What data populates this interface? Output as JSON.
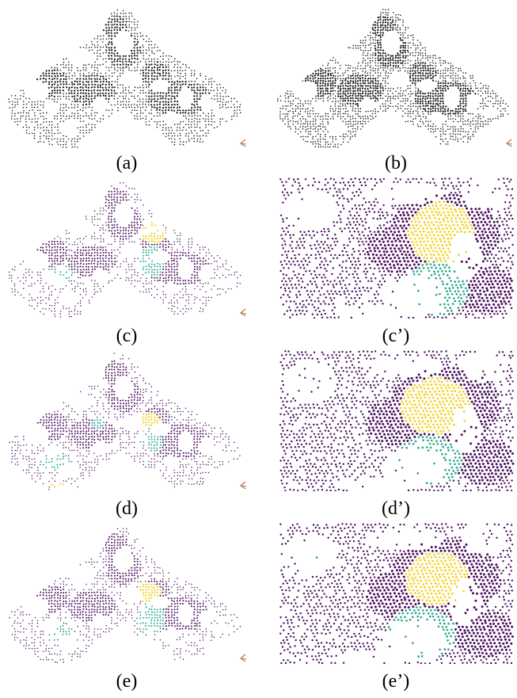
{
  "figure": {
    "captions": {
      "a": "(a)",
      "b": "(b)",
      "c": "(c)",
      "c_prime": "(c’)",
      "d": "(d)",
      "d_prime": "(d’)",
      "e": "(e)",
      "e_prime": "(e’)"
    },
    "colors": {
      "black_points": "#141414",
      "purple": "#4a0f5e",
      "yellow": "#f2d22a",
      "teal": "#1fa58a",
      "axis_red": "#e03a2a",
      "axis_green": "#3aa84a"
    },
    "panels": [
      {
        "id": "a",
        "view": "overview",
        "style": "grayscale"
      },
      {
        "id": "b",
        "view": "overview",
        "style": "grayscale-dense"
      },
      {
        "id": "c",
        "view": "overview",
        "style": "segmented"
      },
      {
        "id": "c_prime",
        "view": "zoom",
        "style": "segmented"
      },
      {
        "id": "d",
        "view": "overview",
        "style": "segmented"
      },
      {
        "id": "d_prime",
        "view": "zoom",
        "style": "segmented"
      },
      {
        "id": "e",
        "view": "overview",
        "style": "segmented"
      },
      {
        "id": "e_prime",
        "view": "zoom",
        "style": "segmented"
      }
    ]
  }
}
